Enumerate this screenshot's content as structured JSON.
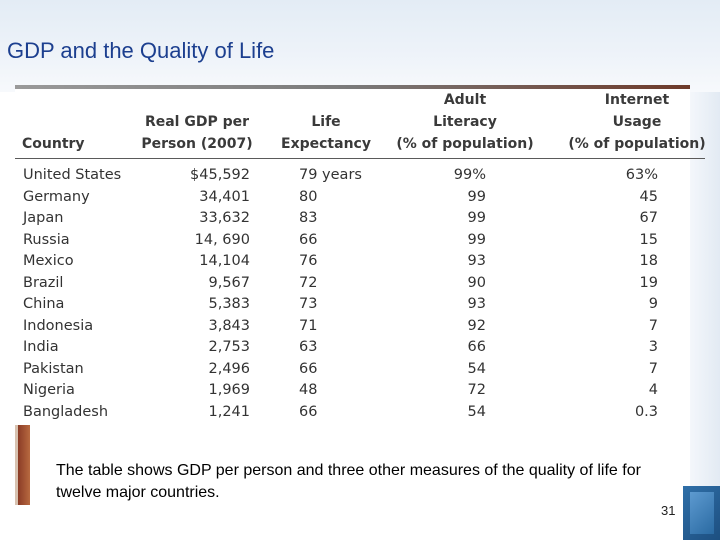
{
  "slide": {
    "title": "GDP and the Quality of Life",
    "caption": "The table shows GDP per person and three other measures of the quality of life for twelve major countries.",
    "page_number": "31"
  },
  "table": {
    "headers": {
      "country": [
        "Country"
      ],
      "gdp": [
        "Real GDP per",
        "Person (2007)"
      ],
      "life": [
        "Life",
        "Expectancy"
      ],
      "literacy": [
        "Adult",
        "Literacy",
        "(% of population)"
      ],
      "internet": [
        "Internet",
        "Usage",
        "(% of population)"
      ]
    },
    "rows": [
      {
        "country": "United States",
        "gdp": "$45,592",
        "life": "79 years",
        "literacy": "99%",
        "internet": "63%"
      },
      {
        "country": "Germany",
        "gdp": "34,401",
        "life": "80",
        "literacy": "99",
        "internet": "45"
      },
      {
        "country": "Japan",
        "gdp": "33,632",
        "life": "83",
        "literacy": "99",
        "internet": "67"
      },
      {
        "country": "Russia",
        "gdp": "14, 690",
        "life": "66",
        "literacy": "99",
        "internet": "15"
      },
      {
        "country": "Mexico",
        "gdp": "14,104",
        "life": "76",
        "literacy": "93",
        "internet": "18"
      },
      {
        "country": "Brazil",
        "gdp": "9,567",
        "life": "72",
        "literacy": "90",
        "internet": "19"
      },
      {
        "country": "China",
        "gdp": "5,383",
        "life": "73",
        "literacy": "93",
        "internet": "9"
      },
      {
        "country": "Indonesia",
        "gdp": "3,843",
        "life": "71",
        "literacy": "92",
        "internet": "7"
      },
      {
        "country": "India",
        "gdp": "2,753",
        "life": "63",
        "literacy": "66",
        "internet": "3"
      },
      {
        "country": "Pakistan",
        "gdp": "2,496",
        "life": "66",
        "literacy": "54",
        "internet": "7"
      },
      {
        "country": "Nigeria",
        "gdp": "1,969",
        "life": "48",
        "literacy": "72",
        "internet": "4"
      },
      {
        "country": "Bangladesh",
        "gdp": "1,241",
        "life": "66",
        "literacy": "54",
        "internet": "0.3"
      }
    ]
  }
}
